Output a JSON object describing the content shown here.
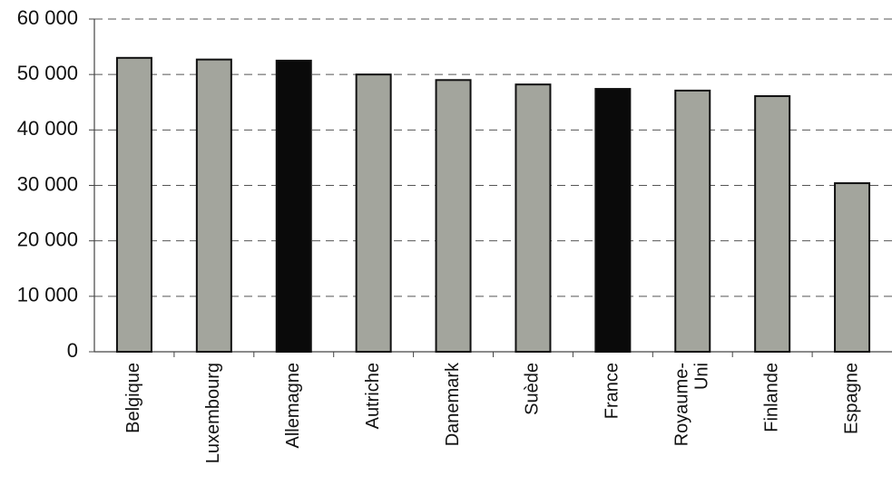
{
  "chart_data": {
    "type": "bar",
    "categories": [
      "Belgique",
      "Luxembourg",
      "Allemagne",
      "Autriche",
      "Danemark",
      "Suède",
      "France",
      "Royaume-Uni",
      "Finlande",
      "Espagne"
    ],
    "values": [
      53000,
      52700,
      52500,
      50000,
      49000,
      48200,
      47400,
      47100,
      46100,
      30400
    ],
    "colors": [
      "#a3a59d",
      "#a3a59d",
      "#0a0a0a",
      "#a3a59d",
      "#a3a59d",
      "#a3a59d",
      "#0a0a0a",
      "#a3a59d",
      "#a3a59d",
      "#a3a59d"
    ],
    "ylim": [
      0,
      60000
    ],
    "yticks": [
      {
        "value": 0,
        "label": "0"
      },
      {
        "value": 10000,
        "label": "10 000"
      },
      {
        "value": 20000,
        "label": "20 000"
      },
      {
        "value": 30000,
        "label": "30 000"
      },
      {
        "value": 40000,
        "label": "40 000"
      },
      {
        "value": 50000,
        "label": "50 000"
      },
      {
        "value": 60000,
        "label": "60 000"
      }
    ],
    "grid": true
  }
}
